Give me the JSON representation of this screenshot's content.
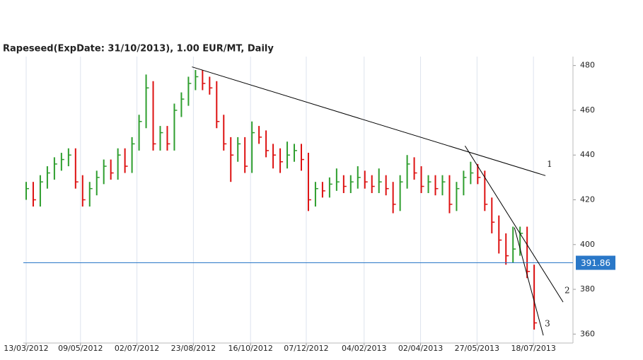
{
  "chart_data": {
    "type": "ohlc",
    "title": "Rapeseed(ExpDate: 31/10/2013), 1.00 EUR/MT, Daily",
    "xlim": [
      -0.4,
      77.5
    ],
    "ylim": [
      356,
      484
    ],
    "xticks": [
      {
        "value": 0,
        "label": "13/03/2012"
      },
      {
        "value": 7.7,
        "label": "09/05/2012"
      },
      {
        "value": 15.7,
        "label": "02/07/2012"
      },
      {
        "value": 23.7,
        "label": "23/08/2012"
      },
      {
        "value": 31.8,
        "label": "16/10/2012"
      },
      {
        "value": 39.7,
        "label": "07/12/2012"
      },
      {
        "value": 47.9,
        "label": "04/02/2013"
      },
      {
        "value": 55.9,
        "label": "02/04/2013"
      },
      {
        "value": 63.9,
        "label": "27/05/2013"
      },
      {
        "value": 71.9,
        "label": "18/07/2013"
      }
    ],
    "yticks": [
      360,
      380,
      400,
      420,
      440,
      460,
      480
    ],
    "grid": true,
    "up_color": "#2e9e2e",
    "down_color": "#dd1111",
    "high": [
      428,
      428,
      431,
      435,
      439,
      441,
      443,
      443,
      431,
      428,
      433,
      438,
      438,
      443,
      443,
      448,
      458,
      476,
      473,
      453,
      453,
      463,
      468,
      475,
      478,
      478,
      475,
      473,
      458,
      448,
      448,
      448,
      455,
      453,
      451,
      445,
      443,
      446,
      445,
      445,
      441,
      428,
      428,
      430,
      434,
      431,
      431,
      435,
      433,
      431,
      434,
      431,
      428,
      431,
      440,
      439,
      435,
      431,
      431,
      431,
      431,
      428,
      433,
      437,
      436,
      433,
      421,
      413,
      405,
      408,
      408,
      408,
      391
    ],
    "low": [
      420,
      417,
      417,
      425,
      429,
      433,
      435,
      425,
      417,
      417,
      422,
      427,
      429,
      429,
      432,
      432,
      442,
      452,
      442,
      442,
      442,
      442,
      457,
      462,
      469,
      469,
      467,
      452,
      442,
      428,
      437,
      432,
      432,
      445,
      439,
      434,
      432,
      434,
      437,
      433,
      415,
      417,
      421,
      421,
      424,
      423,
      423,
      425,
      425,
      423,
      423,
      422,
      414,
      415,
      425,
      429,
      423,
      423,
      422,
      422,
      414,
      415,
      422,
      427,
      427,
      415,
      405,
      396,
      391,
      392,
      395,
      385,
      362
    ],
    "close": [
      425,
      420,
      428,
      432,
      436,
      438,
      440,
      428,
      420,
      425,
      430,
      435,
      432,
      440,
      435,
      445,
      455,
      470,
      445,
      450,
      445,
      460,
      465,
      472,
      475,
      472,
      470,
      455,
      445,
      440,
      445,
      435,
      450,
      448,
      442,
      440,
      437,
      440,
      442,
      438,
      420,
      425,
      424,
      427,
      428,
      426,
      428,
      430,
      428,
      426,
      428,
      425,
      418,
      428,
      436,
      432,
      426,
      428,
      425,
      428,
      418,
      425,
      430,
      432,
      430,
      418,
      410,
      402,
      395,
      398,
      405,
      388,
      365
    ],
    "hline": {
      "value": 391.86,
      "label": "391.86",
      "color": "#2a78c8"
    },
    "trendlines": [
      {
        "label": "1",
        "x": [
          23.5,
          73.6
        ],
        "y": [
          479.4,
          430.8
        ]
      },
      {
        "label": "2",
        "x": [
          62.2,
          76.1
        ],
        "y": [
          444.1,
          374.3
        ]
      },
      {
        "label": "3",
        "x": [
          69.2,
          73.3
        ],
        "y": [
          407.6,
          359.4
        ]
      }
    ]
  }
}
